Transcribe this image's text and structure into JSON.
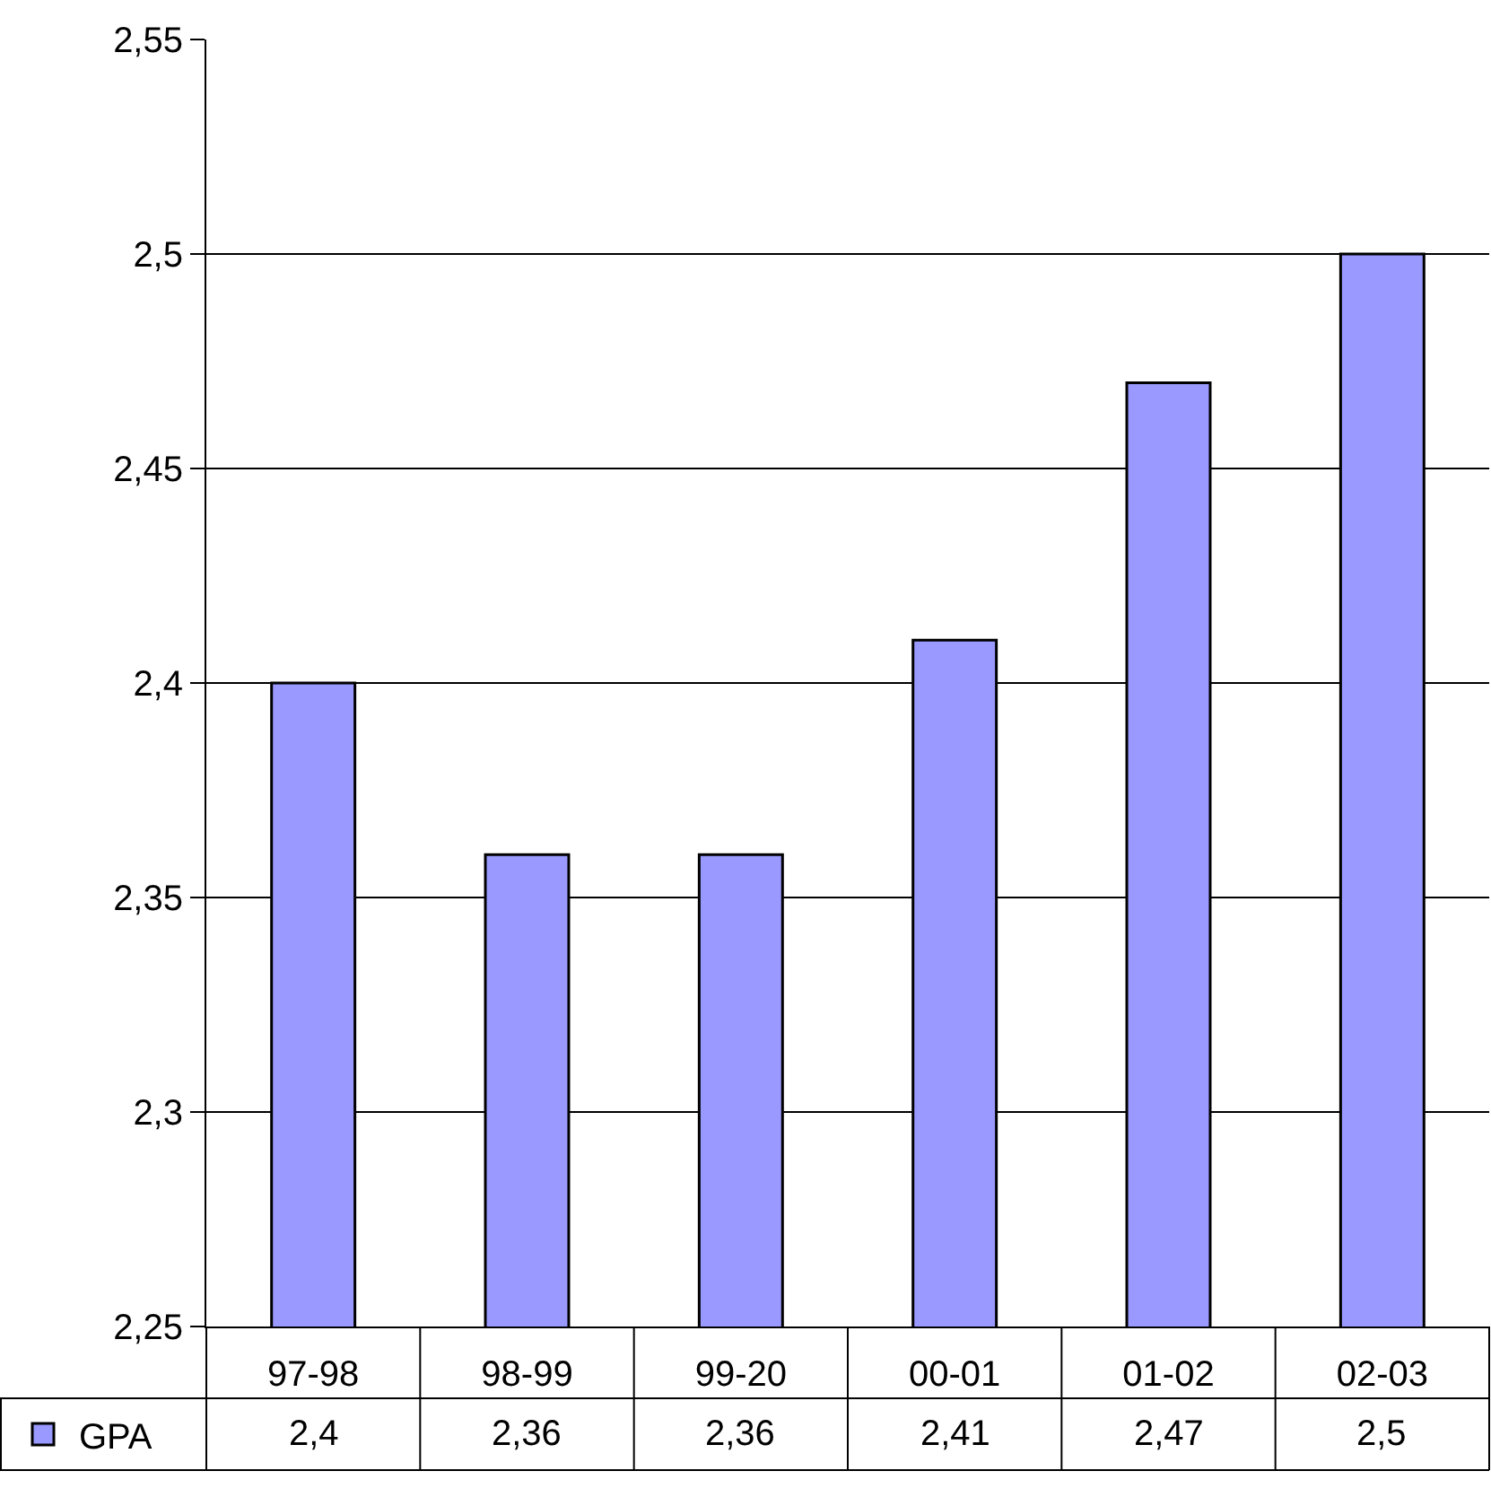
{
  "chart_data": {
    "type": "bar",
    "categories": [
      "97-98",
      "98-99",
      "99-20",
      "00-01",
      "01-02",
      "02-03"
    ],
    "series": [
      {
        "name": "GPA",
        "color": "#9999ff",
        "values": [
          2.4,
          2.36,
          2.36,
          2.41,
          2.47,
          2.5
        ],
        "value_labels": [
          "2,4",
          "2,36",
          "2,36",
          "2,41",
          "2,47",
          "2,5"
        ]
      }
    ],
    "ylim": [
      2.25,
      2.55
    ],
    "yticks": [
      {
        "value": 2.25,
        "label": "2,25"
      },
      {
        "value": 2.3,
        "label": "2,3"
      },
      {
        "value": 2.35,
        "label": "2,35"
      },
      {
        "value": 2.4,
        "label": "2,4"
      },
      {
        "value": 2.45,
        "label": "2,45"
      },
      {
        "value": 2.5,
        "label": "2,5"
      },
      {
        "value": 2.55,
        "label": "2,55"
      }
    ],
    "grid": "y",
    "legend": "bottom left"
  }
}
